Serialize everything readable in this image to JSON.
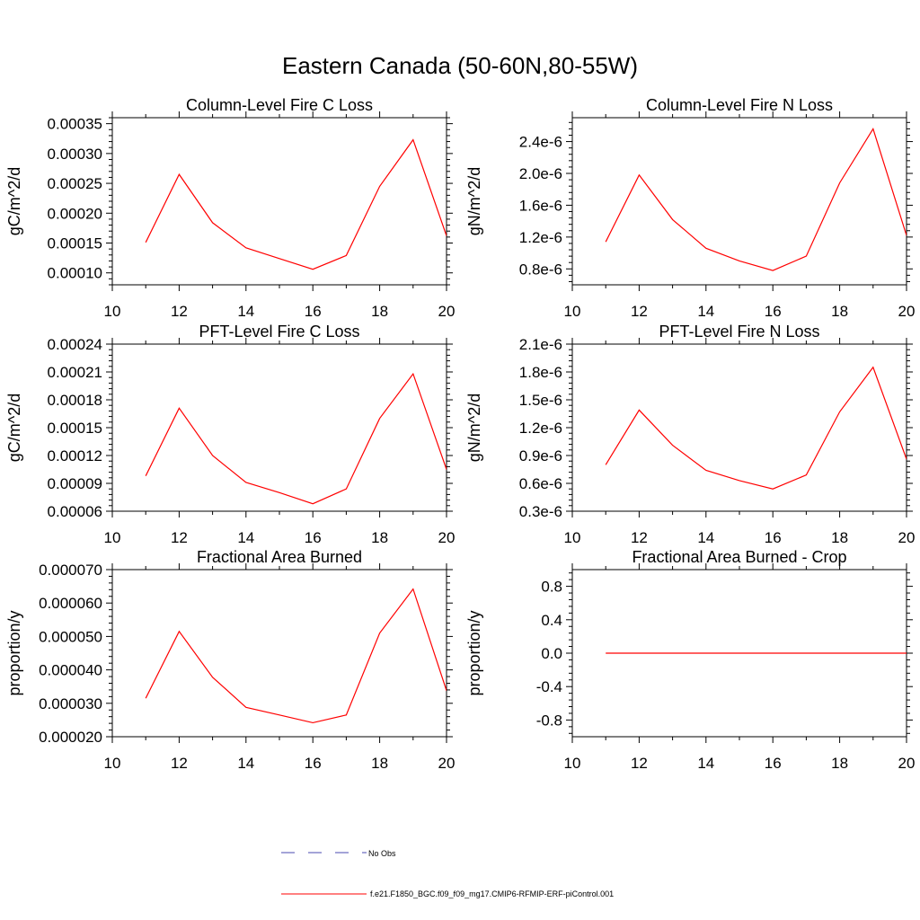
{
  "title": "Eastern Canada (50-60N,80-55W)",
  "legend": [
    {
      "label": "No Obs",
      "color": "#4a4ab0",
      "dash": true
    },
    {
      "label": "f.e21.F1850_BGC.f09_f09_mg17.CMIP6-RFMIP-ERF-piControl.001",
      "color": "#ff0000",
      "dash": false
    }
  ],
  "chart_data": [
    {
      "type": "line",
      "title": "Column-Level Fire C Loss",
      "ylabel": "gC/m^2/d",
      "xlim": [
        10,
        20
      ],
      "ylim": [
        8e-05,
        0.00036
      ],
      "xticks": [
        10,
        12,
        14,
        16,
        18,
        20
      ],
      "xtick_labels": [
        "10",
        "12",
        "14",
        "16",
        "18",
        "20"
      ],
      "yticks": [
        0.0001,
        0.00015,
        0.0002,
        0.00025,
        0.0003,
        0.00035
      ],
      "ytick_labels": [
        "0.00010",
        "0.00015",
        "0.00020",
        "0.00025",
        "0.00030",
        "0.00035"
      ],
      "series": [
        {
          "x": [
            11,
            12,
            13,
            14,
            15,
            16,
            17,
            18,
            19,
            20
          ],
          "values": [
            0.000151,
            0.000265,
            0.000184,
            0.000142,
            0.000124,
            0.000106,
            0.000129,
            0.000245,
            0.000323,
            0.000162
          ]
        }
      ]
    },
    {
      "type": "line",
      "title": "Column-Level Fire N Loss",
      "ylabel": "gN/m^2/d",
      "xlim": [
        10,
        20
      ],
      "ylim": [
        6e-07,
        2.7e-06
      ],
      "xticks": [
        10,
        12,
        14,
        16,
        18,
        20
      ],
      "xtick_labels": [
        "10",
        "12",
        "14",
        "16",
        "18",
        "20"
      ],
      "yticks": [
        8e-07,
        1.2e-06,
        1.6e-06,
        2e-06,
        2.4e-06
      ],
      "ytick_labels": [
        "0.8e-6",
        "1.2e-6",
        "1.6e-6",
        "2.0e-6",
        "2.4e-6"
      ],
      "series": [
        {
          "x": [
            11,
            12,
            13,
            14,
            15,
            16,
            17,
            18,
            19,
            20
          ],
          "values": [
            1.14e-06,
            1.98e-06,
            1.42e-06,
            1.06e-06,
            9e-07,
            7.8e-07,
            9.6e-07,
            1.88e-06,
            2.56e-06,
            1.22e-06
          ]
        }
      ]
    },
    {
      "type": "line",
      "title": "PFT-Level Fire C Loss",
      "ylabel": "gC/m^2/d",
      "xlim": [
        10,
        20
      ],
      "ylim": [
        6e-05,
        0.00024
      ],
      "xticks": [
        10,
        12,
        14,
        16,
        18,
        20
      ],
      "xtick_labels": [
        "10",
        "12",
        "14",
        "16",
        "18",
        "20"
      ],
      "yticks": [
        6e-05,
        9e-05,
        0.00012,
        0.00015,
        0.00018,
        0.00021,
        0.00024
      ],
      "ytick_labels": [
        "0.00006",
        "0.00009",
        "0.00012",
        "0.00015",
        "0.00018",
        "0.00021",
        "0.00024"
      ],
      "series": [
        {
          "x": [
            11,
            12,
            13,
            14,
            15,
            16,
            17,
            18,
            19,
            20
          ],
          "values": [
            9.8e-05,
            0.000171,
            0.00012,
            9.1e-05,
            8e-05,
            6.8e-05,
            8.4e-05,
            0.00016,
            0.000208,
            0.000105
          ]
        }
      ]
    },
    {
      "type": "line",
      "title": "PFT-Level Fire N Loss",
      "ylabel": "gN/m^2/d",
      "xlim": [
        10,
        20
      ],
      "ylim": [
        3e-07,
        2.1e-06
      ],
      "xticks": [
        10,
        12,
        14,
        16,
        18,
        20
      ],
      "xtick_labels": [
        "10",
        "12",
        "14",
        "16",
        "18",
        "20"
      ],
      "yticks": [
        3e-07,
        6e-07,
        9e-07,
        1.2e-06,
        1.5e-06,
        1.8e-06,
        2.1e-06
      ],
      "ytick_labels": [
        "0.3e-6",
        "0.6e-6",
        "0.9e-6",
        "1.2e-6",
        "1.5e-6",
        "1.8e-6",
        "2.1e-6"
      ],
      "series": [
        {
          "x": [
            11,
            12,
            13,
            14,
            15,
            16,
            17,
            18,
            19,
            20
          ],
          "values": [
            8e-07,
            1.39e-06,
            1.01e-06,
            7.4e-07,
            6.3e-07,
            5.4e-07,
            6.9e-07,
            1.37e-06,
            1.85e-06,
            8.6e-07
          ]
        }
      ]
    },
    {
      "type": "line",
      "title": "Fractional Area Burned",
      "ylabel": "proportion/y",
      "xlim": [
        10,
        20
      ],
      "ylim": [
        2e-05,
        7e-05
      ],
      "xticks": [
        10,
        12,
        14,
        16,
        18,
        20
      ],
      "xtick_labels": [
        "10",
        "12",
        "14",
        "16",
        "18",
        "20"
      ],
      "yticks": [
        2e-05,
        3e-05,
        4e-05,
        5e-05,
        6e-05,
        7e-05
      ],
      "ytick_labels": [
        "0.000020",
        "0.000030",
        "0.000040",
        "0.000050",
        "0.000060",
        "0.000070"
      ],
      "series": [
        {
          "x": [
            11,
            12,
            13,
            14,
            15,
            16,
            17,
            18,
            19,
            20
          ],
          "values": [
            3.15e-05,
            5.15e-05,
            3.78e-05,
            2.88e-05,
            2.65e-05,
            2.42e-05,
            2.65e-05,
            5.1e-05,
            6.42e-05,
            3.38e-05
          ]
        }
      ]
    },
    {
      "type": "line",
      "title": "Fractional Area Burned - Crop",
      "ylabel": "proportion/y",
      "xlim": [
        10,
        20
      ],
      "ylim": [
        -1,
        1
      ],
      "xticks": [
        10,
        12,
        14,
        16,
        18,
        20
      ],
      "xtick_labels": [
        "10",
        "12",
        "14",
        "16",
        "18",
        "20"
      ],
      "yticks": [
        -0.8,
        -0.4,
        0,
        0.4,
        0.8
      ],
      "ytick_labels": [
        "-0.8",
        "-0.4",
        "0.0",
        "0.4",
        "0.8"
      ],
      "series": [
        {
          "x": [
            11,
            12,
            13,
            14,
            15,
            16,
            17,
            18,
            19,
            20
          ],
          "values": [
            0,
            0,
            0,
            0,
            0,
            0,
            0,
            0,
            0,
            0
          ]
        }
      ]
    }
  ]
}
